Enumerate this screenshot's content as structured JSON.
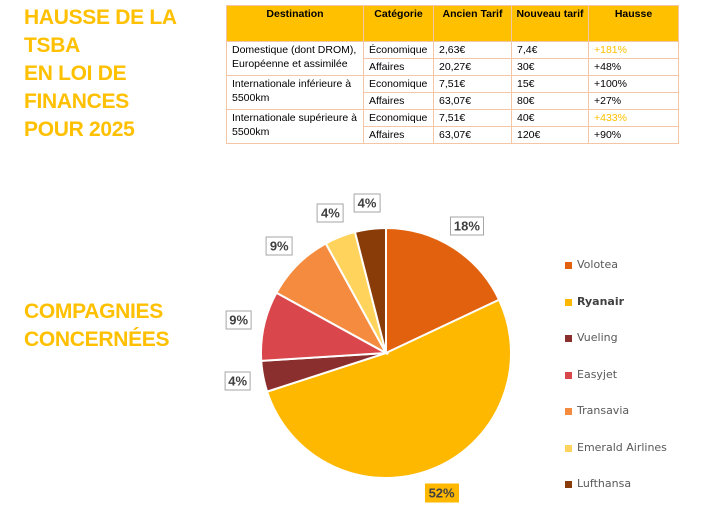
{
  "heading": {
    "lines": [
      "HAUSSE DE LA",
      "TSBA",
      "EN LOI DE",
      "FINANCES",
      "POUR 2025"
    ]
  },
  "subheading": {
    "lines": [
      "COMPAGNIES",
      "CONCERNÉES"
    ]
  },
  "table": {
    "headers": [
      "Destination",
      "Catégorie",
      "Ancien Tarif",
      "Nouveau tarif",
      "Hausse"
    ],
    "groups": [
      {
        "destination": "Domestique (dont DROM), Européenne et assimilée",
        "rows": [
          {
            "categorie": "Économique",
            "ancien": "2,63€",
            "nouveau": "7,4€",
            "hausse": "+181%",
            "highlight": true
          },
          {
            "categorie": "Affaires",
            "ancien": "20,27€",
            "nouveau": "30€",
            "hausse": "+48%",
            "highlight": false
          }
        ]
      },
      {
        "destination": "Internationale inférieure à 5500km",
        "rows": [
          {
            "categorie": "Economique",
            "ancien": "7,51€",
            "nouveau": "15€",
            "hausse": "+100%",
            "highlight": false
          },
          {
            "categorie": "Affaires",
            "ancien": "63,07€",
            "nouveau": "80€",
            "hausse": "+27%",
            "highlight": false
          }
        ]
      },
      {
        "destination": "Internationale supérieure à 5500km",
        "rows": [
          {
            "categorie": "Economique",
            "ancien": "7,51€",
            "nouveau": "40€",
            "hausse": "+433%",
            "highlight": true
          },
          {
            "categorie": "Affaires",
            "ancien": "63,07€",
            "nouveau": "120€",
            "hausse": "+90%",
            "highlight": false
          }
        ]
      }
    ],
    "colors": {
      "header": "#FFC000",
      "border": "#F4C6A6",
      "highlight_text": "#FFC000"
    }
  },
  "chart_data": {
    "type": "pie",
    "start": "top",
    "direction": "clockwise",
    "legend_placement": "right",
    "slices": [
      {
        "name": "Volotea",
        "value": 18,
        "label": "18%",
        "color": "#E2610E"
      },
      {
        "name": "Ryanair",
        "value": 52,
        "label": "52%",
        "color": "#FFB800",
        "bold": true
      },
      {
        "name": "Vueling",
        "value": 4,
        "label": "4%",
        "color": "#8B2E2E"
      },
      {
        "name": "Easyjet",
        "value": 9,
        "label": "9%",
        "color": "#D9474C"
      },
      {
        "name": "Transavia",
        "value": 9,
        "label": "9%",
        "color": "#F58B3E"
      },
      {
        "name": "Emerald Airlines",
        "value": 4,
        "label": "4%",
        "color": "#FFD35C"
      },
      {
        "name": "Lufthansa",
        "value": 4,
        "label": "4%",
        "color": "#8A3C08"
      }
    ]
  }
}
